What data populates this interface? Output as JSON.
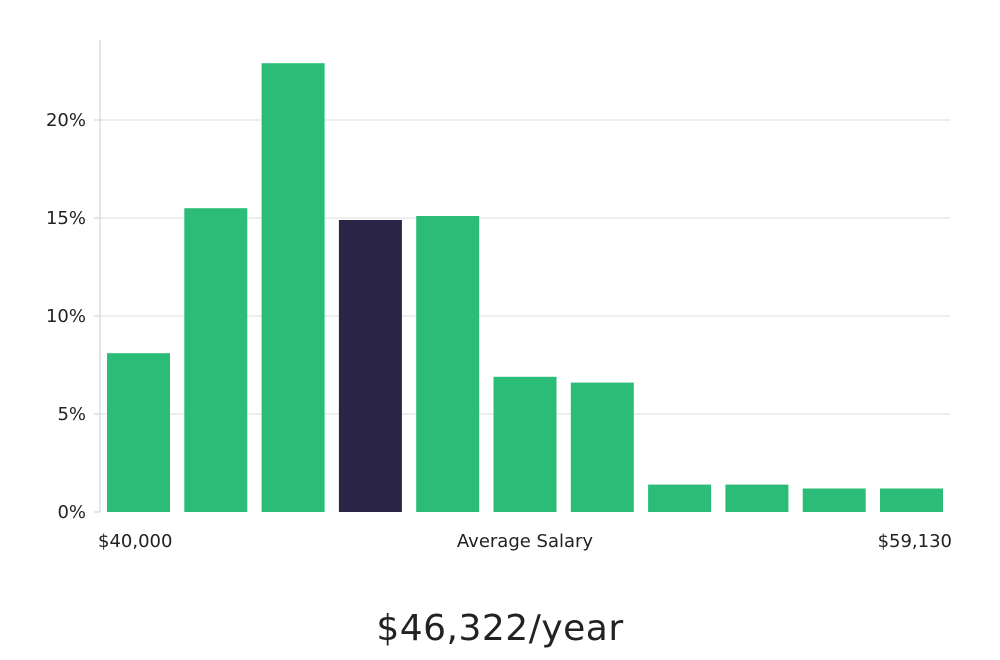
{
  "chart_data": {
    "type": "bar",
    "title": "",
    "ylabel": "",
    "xlabel": "Average Salary",
    "ylim": [
      0,
      24
    ],
    "yticks": [
      {
        "value": 0,
        "label": "0%"
      },
      {
        "value": 5,
        "label": "5%"
      },
      {
        "value": 10,
        "label": "10%"
      },
      {
        "value": 15,
        "label": "15%"
      },
      {
        "value": 20,
        "label": "20%"
      }
    ],
    "x_min_label": "$40,000",
    "x_max_label": "$59,130",
    "values": [
      8.1,
      15.5,
      22.9,
      14.9,
      15.1,
      6.9,
      6.6,
      1.4,
      1.4,
      1.2,
      1.2
    ],
    "highlight_index": 3,
    "colors": {
      "bar": "#2bbd77",
      "highlight": "#2a2546",
      "grid": "#dddddd",
      "axis": "#cccccc"
    }
  },
  "summary": {
    "salary_text": "$46,322/year"
  }
}
